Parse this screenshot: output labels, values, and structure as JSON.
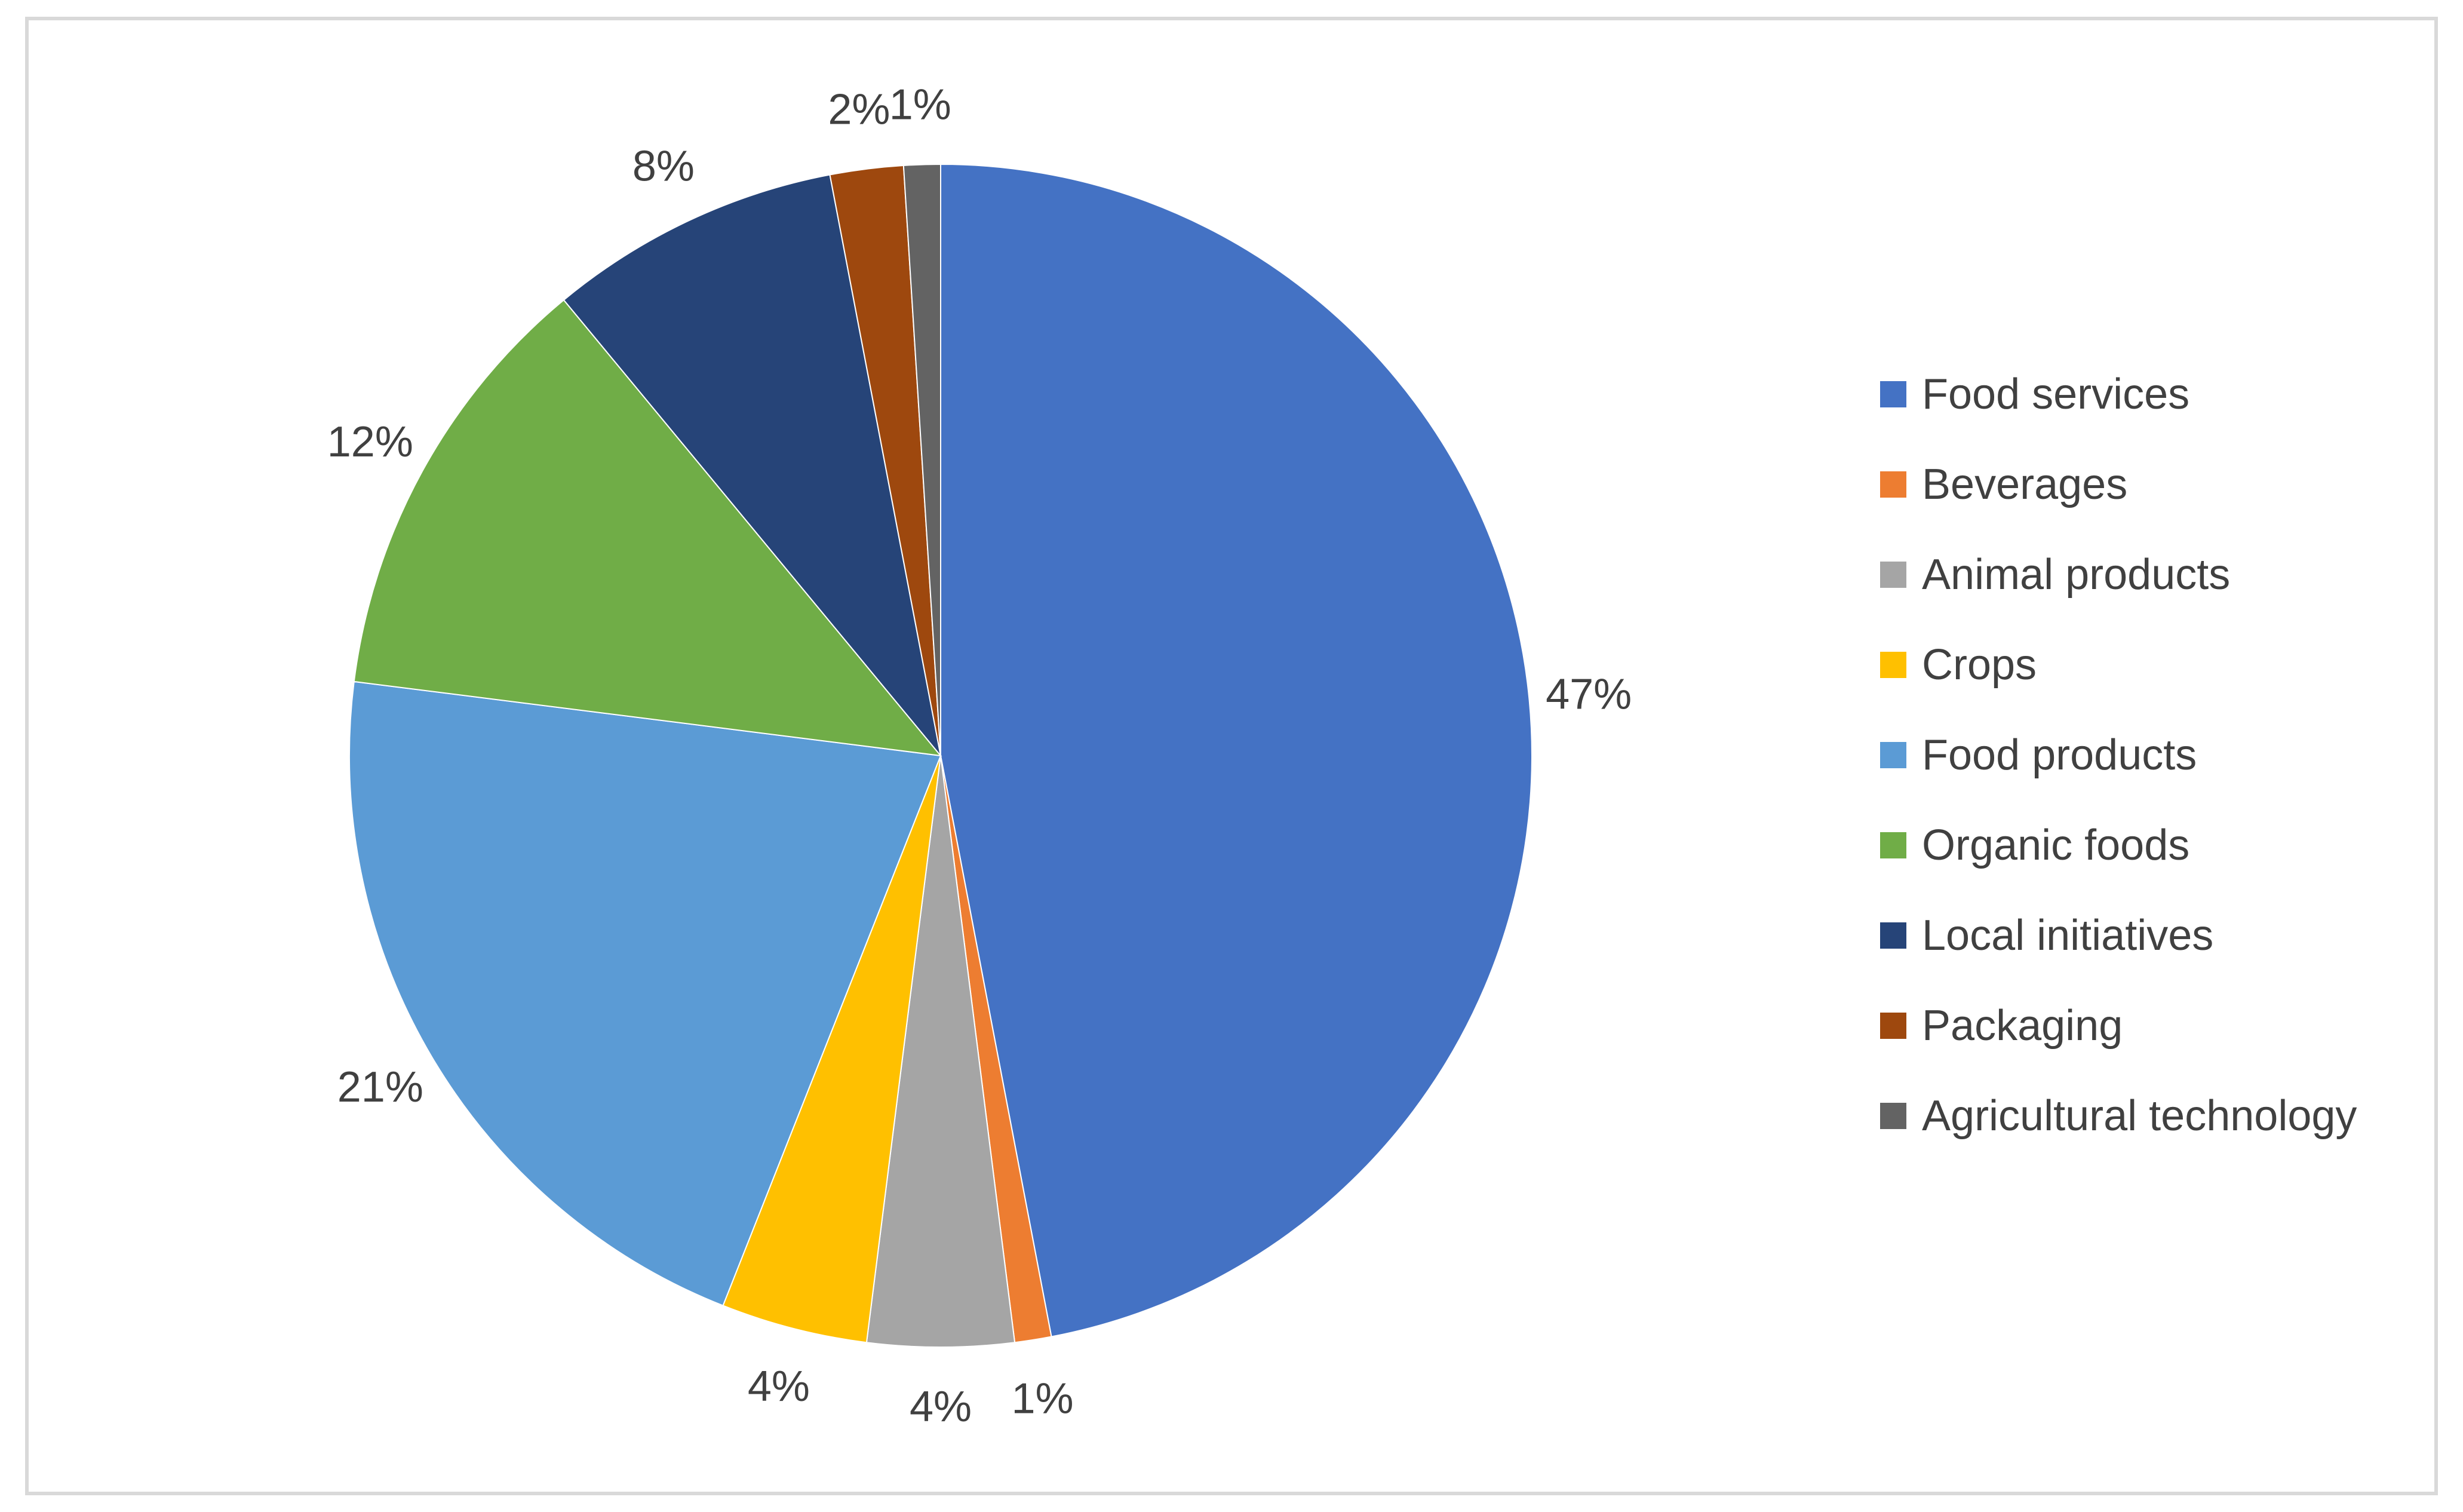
{
  "chart_data": {
    "type": "pie",
    "title": "",
    "legend_position": "right",
    "start_angle_deg": 0,
    "direction": "clockwise",
    "slices": [
      {
        "name": "Food services",
        "value": 47,
        "label": "47%",
        "color": "#4472C4"
      },
      {
        "name": "Beverages",
        "value": 1,
        "label": "1%",
        "color": "#ED7D31"
      },
      {
        "name": "Animal products",
        "value": 4,
        "label": "4%",
        "color": "#A5A5A5"
      },
      {
        "name": "Crops",
        "value": 4,
        "label": "4%",
        "color": "#FFC000"
      },
      {
        "name": "Food products",
        "value": 21,
        "label": "21%",
        "color": "#5B9BD5"
      },
      {
        "name": "Organic foods",
        "value": 12,
        "label": "12%",
        "color": "#70AD47"
      },
      {
        "name": "Local initiatives",
        "value": 8,
        "label": "8%",
        "color": "#264478"
      },
      {
        "name": "Packaging",
        "value": 2,
        "label": "2%",
        "color": "#9E480E"
      },
      {
        "name": "Agricultural technology",
        "value": 1,
        "label": "1%",
        "color": "#636363"
      }
    ]
  }
}
